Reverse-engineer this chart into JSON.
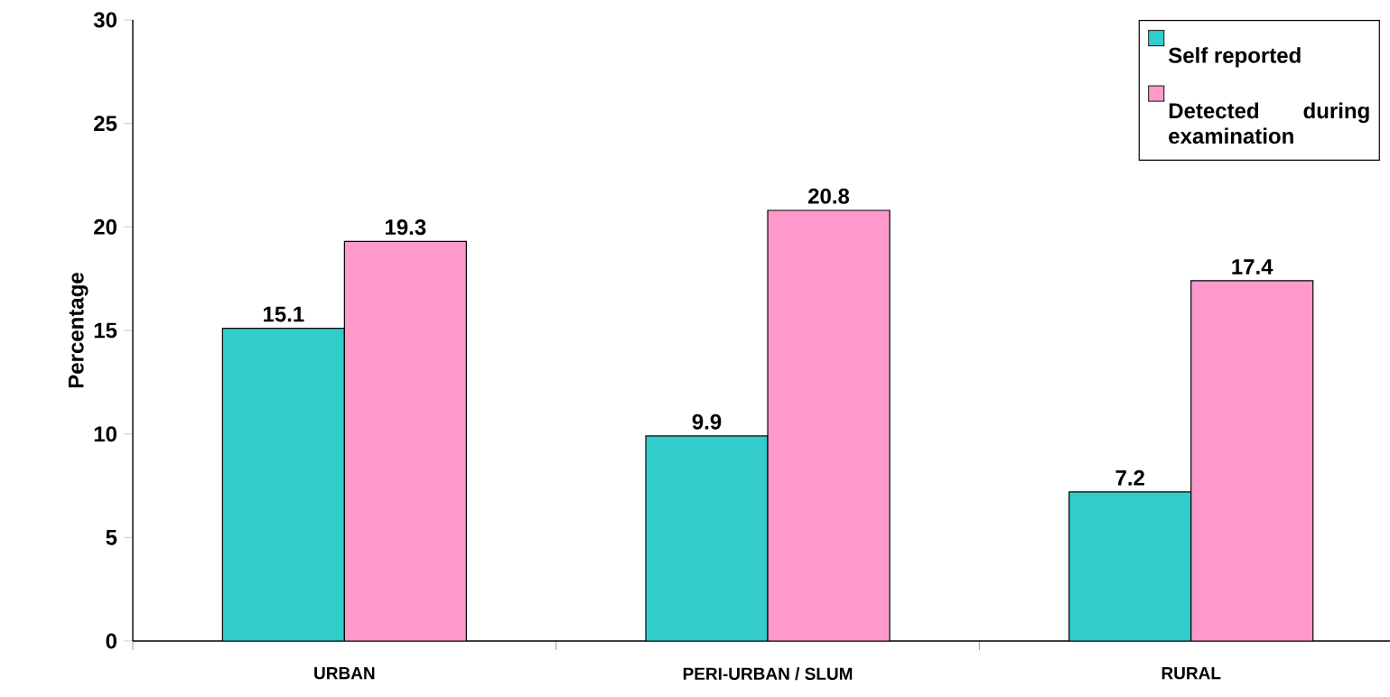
{
  "chart_data": {
    "type": "bar",
    "ylabel": "Percentage",
    "categories": [
      "URBAN",
      "PERI-URBAN / SLUM",
      "RURAL"
    ],
    "series": [
      {
        "name": "Self reported",
        "color": "#33cccc",
        "values": [
          15.1,
          9.9,
          7.2
        ]
      },
      {
        "name": "Detected during examination",
        "color": "#ff99cc",
        "values": [
          19.3,
          20.8,
          17.4
        ]
      }
    ],
    "ylim": [
      0,
      30
    ],
    "yticks": [
      0,
      5,
      10,
      15,
      20,
      25,
      30
    ],
    "data_labels": true,
    "legend": "top right",
    "grid": false
  }
}
